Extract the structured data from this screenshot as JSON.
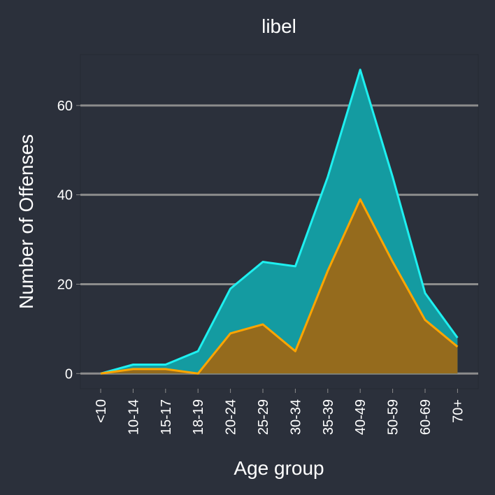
{
  "chart_data": {
    "type": "area",
    "title": "libel",
    "xlabel": "Age group",
    "ylabel": "Number of Offenses",
    "categories": [
      "<10",
      "10-14",
      "15-17",
      "18-19",
      "20-24",
      "25-29",
      "30-34",
      "35-39",
      "40-49",
      "50-59",
      "60-69",
      "70+"
    ],
    "series": [
      {
        "values": [
          0,
          2,
          2,
          5,
          19,
          25,
          24,
          44,
          68,
          44,
          18,
          8
        ],
        "color": "#1ef0f0",
        "fill": "#149ba1"
      },
      {
        "values": [
          0,
          1,
          1,
          0,
          9,
          11,
          5,
          23,
          39,
          25,
          12,
          6
        ],
        "color": "#ffa500",
        "fill": "#956b1d"
      }
    ],
    "yticks": [
      0,
      20,
      40,
      60
    ],
    "ylim": [
      -3.4,
      71.4
    ],
    "grid": true,
    "legend": "none",
    "colors": {
      "background": "#2b303b",
      "panel": "#2b303b",
      "grid": "#8c8c8c",
      "text": "#ffffff"
    }
  }
}
